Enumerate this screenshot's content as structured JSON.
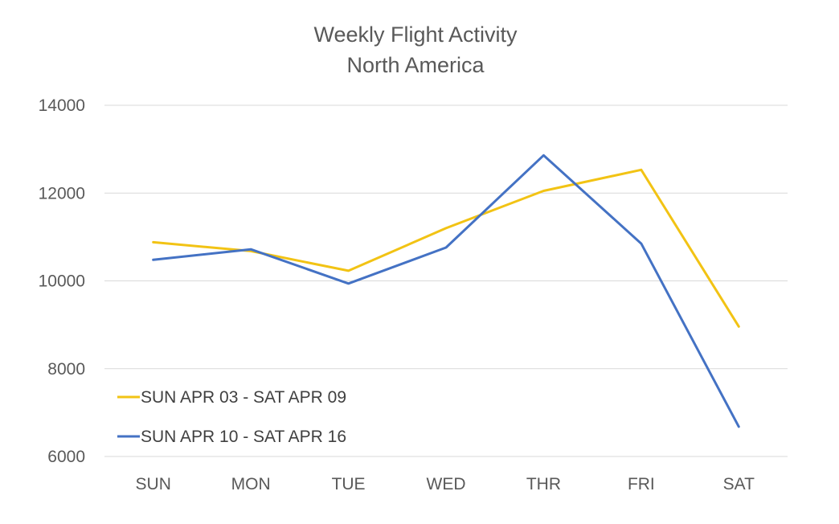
{
  "chart_data": {
    "type": "line",
    "title": "Weekly Flight Activity",
    "subtitle": "North America",
    "xlabel": "",
    "ylabel": "",
    "categories": [
      "SUN",
      "MON",
      "TUE",
      "WED",
      "THR",
      "FRI",
      "SAT"
    ],
    "ylim": [
      6000,
      14000
    ],
    "yticks": [
      6000,
      8000,
      10000,
      12000,
      14000
    ],
    "ytick_labels": [
      "6000",
      "8000",
      "10000",
      "12000",
      "14000"
    ],
    "grid": true,
    "legend_position": "bottom-left",
    "series": [
      {
        "name": "SUN APR 03 - SAT APR 09",
        "color": "#F2C314",
        "values": [
          10880,
          10680,
          10230,
          11200,
          12050,
          12530,
          8960
        ]
      },
      {
        "name": "SUN APR 10 - SAT APR 16",
        "color": "#4472C4",
        "values": [
          10480,
          10720,
          9940,
          10760,
          12860,
          10850,
          6680
        ]
      }
    ],
    "gridline_color": "#D9D9D9"
  }
}
